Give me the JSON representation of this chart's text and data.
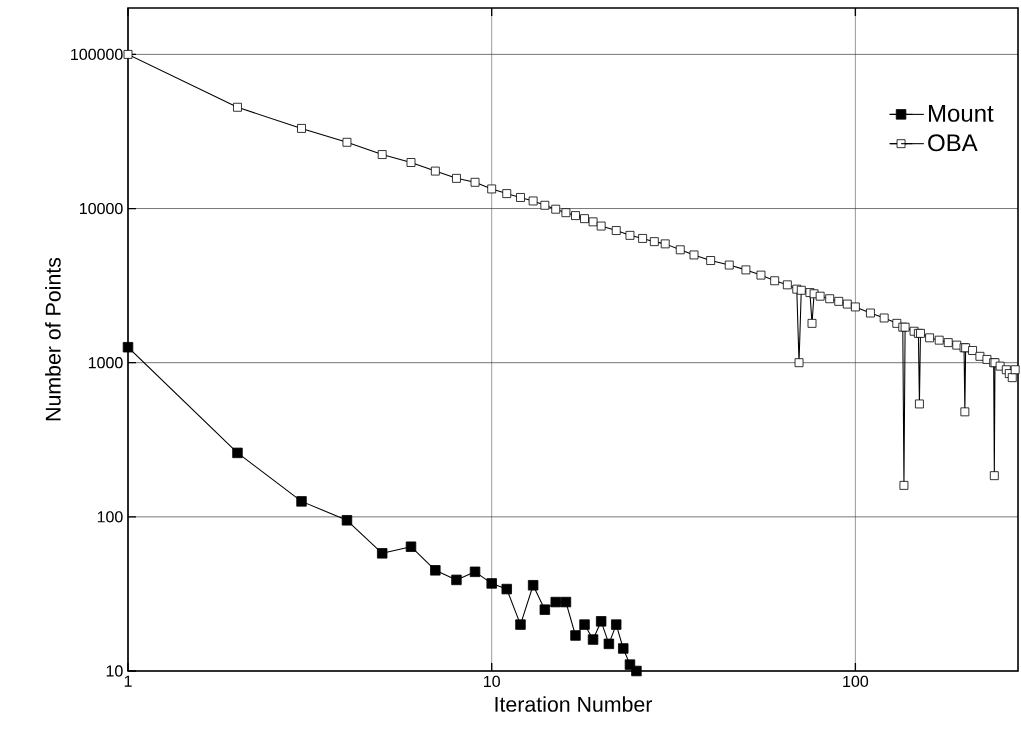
{
  "chart_data": {
    "type": "line",
    "xlabel": "Iteration Number",
    "ylabel": "Number of Points",
    "log": "xy",
    "grid": true,
    "legend": "top right",
    "marker": "square",
    "line_style": "solid",
    "xlim": [
      1,
      280
    ],
    "ylim": [
      10,
      200000
    ],
    "xticks": [
      1,
      10,
      100
    ],
    "yticks": [
      10,
      100,
      1000,
      10000,
      100000
    ],
    "series": [
      {
        "name": "Mount",
        "color": "#000000",
        "x": [
          1,
          2,
          3,
          4,
          5,
          6,
          7,
          8,
          9,
          10,
          11,
          12,
          13,
          14,
          15,
          16,
          17,
          18,
          19,
          20,
          21,
          22,
          23,
          24,
          25
        ],
        "values": [
          1260,
          260,
          126,
          95,
          58,
          64,
          45,
          39,
          44,
          37,
          34,
          20,
          36,
          25,
          28,
          28,
          17,
          20,
          16,
          21,
          15,
          20,
          14,
          11,
          10
        ]
      },
      {
        "name": "OBA",
        "color": "#000000",
        "x": [
          1,
          2,
          3,
          4,
          5,
          6,
          7,
          8,
          9,
          10,
          11,
          12,
          13,
          14,
          15,
          16,
          17,
          18,
          19,
          20,
          22,
          24,
          26,
          28,
          30,
          33,
          36,
          40,
          45,
          50,
          55,
          60,
          65,
          69,
          70,
          71,
          75,
          76,
          77,
          80,
          85,
          90,
          95,
          100,
          110,
          120,
          130,
          135,
          136,
          137,
          145,
          149,
          150,
          151,
          160,
          170,
          180,
          190,
          199,
          200,
          201,
          210,
          220,
          230,
          240,
          241,
          242,
          250,
          260,
          265,
          270,
          275
        ],
        "values": [
          100000,
          45400,
          33100,
          26900,
          22400,
          19900,
          17500,
          15700,
          14800,
          13400,
          12500,
          11800,
          11200,
          10500,
          9900,
          9400,
          9000,
          8600,
          8200,
          7700,
          7200,
          6700,
          6400,
          6100,
          5900,
          5400,
          5000,
          4600,
          4300,
          4000,
          3700,
          3400,
          3200,
          3000,
          1000,
          2950,
          2850,
          1800,
          2800,
          2700,
          2600,
          2500,
          2400,
          2300,
          2100,
          1950,
          1800,
          1700,
          160,
          1700,
          1600,
          1550,
          540,
          1550,
          1450,
          1400,
          1350,
          1300,
          1250,
          480,
          1250,
          1200,
          1100,
          1050,
          1000,
          185,
          1000,
          950,
          900,
          850,
          800,
          900
        ]
      }
    ]
  }
}
